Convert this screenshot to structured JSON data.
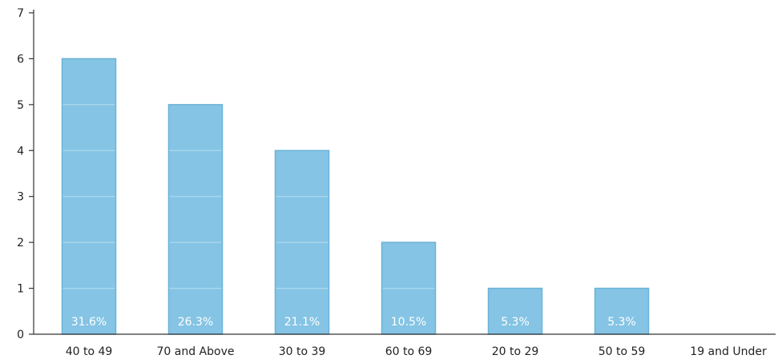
{
  "chart_data": {
    "type": "bar",
    "title": "",
    "xlabel": "",
    "ylabel": "",
    "categories": [
      "40 to 49",
      "70 and Above",
      "30 to 39",
      "60 to 69",
      "20 to 29",
      "50 to 59",
      "19 and Under"
    ],
    "values": [
      6,
      5,
      4,
      2,
      1,
      1,
      0
    ],
    "data_labels": [
      "31.6%",
      "26.3%",
      "21.1%",
      "10.5%",
      "5.3%",
      "5.3%",
      ""
    ],
    "ylim": [
      0,
      7
    ],
    "yticks": [
      "0",
      "1",
      "2",
      "3",
      "4",
      "5",
      "6",
      "7"
    ],
    "grid": "horizontal lines drawn inside bars only",
    "legend": "none",
    "colors": {
      "bar_fill": "#85C4E4",
      "bar_edge": "#6BB2D8",
      "bar_gridline": "#B7DDF0",
      "axis": "#333333",
      "tick_text": "#222222",
      "data_label": "#ffffff"
    }
  }
}
